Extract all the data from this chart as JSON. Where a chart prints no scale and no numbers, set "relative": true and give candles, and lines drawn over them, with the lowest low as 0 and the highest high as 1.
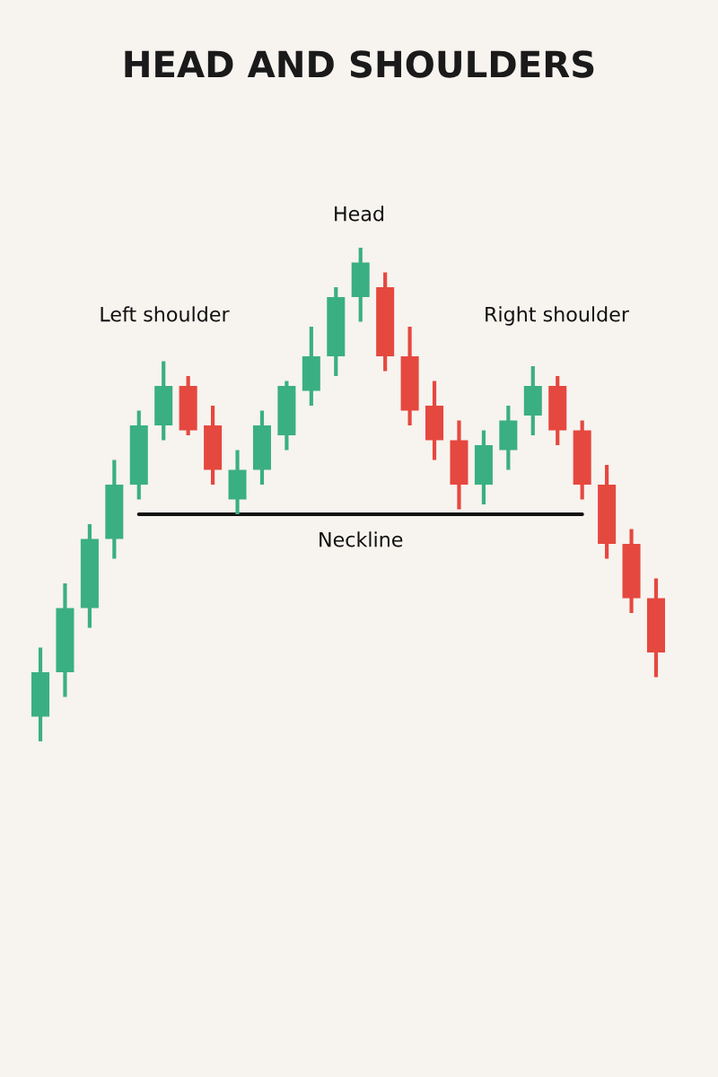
{
  "chart_data": {
    "type": "candlestick",
    "title": "HEAD AND SHOULDERS",
    "relative": true,
    "categories": [
      null,
      null,
      null,
      null,
      null,
      null,
      null,
      null,
      null,
      null,
      null,
      null,
      null,
      null,
      null,
      null,
      null,
      null,
      null,
      null,
      null,
      null,
      null,
      null,
      null,
      null
    ],
    "ohlc": [
      [
        0.05,
        0.19,
        0,
        0.14
      ],
      [
        0.14,
        0.32,
        0.09,
        0.27
      ],
      [
        0.27,
        0.44,
        0.23,
        0.41
      ],
      [
        0.41,
        0.57,
        0.37,
        0.52
      ],
      [
        0.52,
        0.67,
        0.49,
        0.64
      ],
      [
        0.64,
        0.77,
        0.61,
        0.72
      ],
      [
        0.72,
        0.74,
        0.62,
        0.63
      ],
      [
        0.64,
        0.68,
        0.52,
        0.55
      ],
      [
        0.49,
        0.59,
        0.46,
        0.55
      ],
      [
        0.55,
        0.67,
        0.52,
        0.64
      ],
      [
        0.62,
        0.73,
        0.59,
        0.72
      ],
      [
        0.71,
        0.84,
        0.68,
        0.78
      ],
      [
        0.78,
        0.92,
        0.74,
        0.9
      ],
      [
        0.9,
        1,
        0.85,
        0.97
      ],
      [
        0.92,
        0.95,
        0.75,
        0.78
      ],
      [
        0.78,
        0.84,
        0.64,
        0.67
      ],
      [
        0.68,
        0.73,
        0.57,
        0.61
      ],
      [
        0.61,
        0.65,
        0.47,
        0.52
      ],
      [
        0.52,
        0.63,
        0.48,
        0.6
      ],
      [
        0.59,
        0.68,
        0.55,
        0.65
      ],
      [
        0.66,
        0.76,
        0.62,
        0.72
      ],
      [
        0.72,
        0.74,
        0.6,
        0.63
      ],
      [
        0.63,
        0.65,
        0.49,
        0.52
      ],
      [
        0.52,
        0.56,
        0.37,
        0.4
      ],
      [
        0.4,
        0.43,
        0.26,
        0.29
      ],
      [
        0.29,
        0.33,
        0.13,
        0.18
      ]
    ],
    "colors": [
      "#3aaf83",
      "#3aaf83",
      "#3aaf83",
      "#3aaf83",
      "#3aaf83",
      "#3aaf83",
      "#e5483f",
      "#e5483f",
      "#3aaf83",
      "#3aaf83",
      "#3aaf83",
      "#3aaf83",
      "#3aaf83",
      "#3aaf83",
      "#e5483f",
      "#e5483f",
      "#e5483f",
      "#e5483f",
      "#3aaf83",
      "#3aaf83",
      "#3aaf83",
      "#e5483f",
      "#e5483f",
      "#e5483f",
      "#e5483f",
      "#e5483f"
    ],
    "series": [
      {
        "name": "Neckline",
        "type": "line",
        "color": "#111111",
        "values": [
          null,
          null,
          null,
          null,
          0.46,
          0.46,
          0.46,
          0.46,
          0.46,
          0.46,
          0.46,
          0.46,
          0.46,
          0.46,
          0.46,
          0.46,
          0.46,
          0.46,
          0.46,
          0.46,
          0.46,
          0.46,
          0.46,
          null,
          null,
          null
        ]
      }
    ],
    "annotations": [
      "Head",
      "Left shoulder",
      "Right shoulder"
    ],
    "grid": false,
    "legend": false
  }
}
